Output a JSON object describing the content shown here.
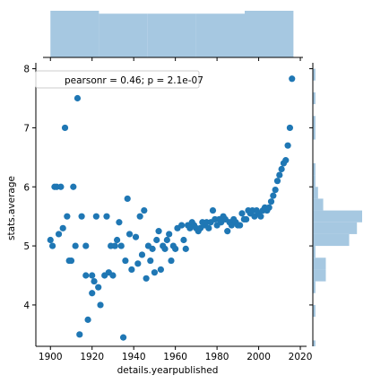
{
  "chart_data": {
    "type": "scatter",
    "subtype": "jointplot",
    "xlabel": "details.yearpublished",
    "ylabel": "stats.average",
    "xlim": [
      1893,
      2023
    ],
    "ylim": [
      3.3,
      8.1
    ],
    "xticks": [
      1900,
      1920,
      1940,
      1960,
      1980,
      2000,
      2020
    ],
    "xtick_labels": [
      "1900",
      "1920",
      "1940",
      "1960",
      "1980",
      "2000",
      "2020"
    ],
    "yticks": [
      4,
      5,
      6,
      7,
      8
    ],
    "ytick_labels": [
      "4",
      "5",
      "6",
      "7",
      "8"
    ],
    "legend_text": "pearsonr = 0.46; p = 2.1e-07",
    "legend_position": "upper left",
    "grid": false,
    "colors": {
      "points": "#1f77b4",
      "histogram": "#a6c8e1",
      "axis": "#000000"
    },
    "points": [
      [
        1900,
        5.1
      ],
      [
        1901,
        5.0
      ],
      [
        1902,
        6.0
      ],
      [
        1903,
        6.0
      ],
      [
        1904,
        5.2
      ],
      [
        1905,
        6.0
      ],
      [
        1906,
        5.3
      ],
      [
        1907,
        7.0
      ],
      [
        1908,
        5.5
      ],
      [
        1909,
        4.75
      ],
      [
        1910,
        4.75
      ],
      [
        1911,
        6.0
      ],
      [
        1912,
        5.0
      ],
      [
        1913,
        7.5
      ],
      [
        1914,
        3.5
      ],
      [
        1915,
        5.5
      ],
      [
        1917,
        4.5
      ],
      [
        1917,
        5.0
      ],
      [
        1918,
        3.75
      ],
      [
        1920,
        4.5
      ],
      [
        1920,
        4.2
      ],
      [
        1921,
        4.4
      ],
      [
        1922,
        5.5
      ],
      [
        1923,
        4.3
      ],
      [
        1924,
        4.0
      ],
      [
        1926,
        4.5
      ],
      [
        1927,
        5.5
      ],
      [
        1928,
        4.55
      ],
      [
        1929,
        5.0
      ],
      [
        1930,
        4.5
      ],
      [
        1931,
        5.0
      ],
      [
        1932,
        5.1
      ],
      [
        1933,
        5.4
      ],
      [
        1934,
        5.0
      ],
      [
        1935,
        3.45
      ],
      [
        1936,
        4.75
      ],
      [
        1937,
        5.8
      ],
      [
        1938,
        5.2
      ],
      [
        1939,
        4.6
      ],
      [
        1941,
        5.15
      ],
      [
        1942,
        4.7
      ],
      [
        1943,
        5.5
      ],
      [
        1944,
        4.85
      ],
      [
        1945,
        5.6
      ],
      [
        1946,
        4.45
      ],
      [
        1947,
        5.0
      ],
      [
        1948,
        4.75
      ],
      [
        1949,
        4.95
      ],
      [
        1950,
        4.55
      ],
      [
        1951,
        5.1
      ],
      [
        1952,
        5.25
      ],
      [
        1953,
        4.6
      ],
      [
        1954,
        5.0
      ],
      [
        1955,
        4.95
      ],
      [
        1956,
        5.1
      ],
      [
        1957,
        5.2
      ],
      [
        1958,
        4.75
      ],
      [
        1959,
        5.0
      ],
      [
        1960,
        4.95
      ],
      [
        1961,
        5.3
      ],
      [
        1963,
        5.35
      ],
      [
        1964,
        5.1
      ],
      [
        1965,
        4.95
      ],
      [
        1966,
        5.35
      ],
      [
        1967,
        5.3
      ],
      [
        1968,
        5.4
      ],
      [
        1969,
        5.35
      ],
      [
        1970,
        5.3
      ],
      [
        1971,
        5.25
      ],
      [
        1972,
        5.3
      ],
      [
        1973,
        5.4
      ],
      [
        1974,
        5.35
      ],
      [
        1975,
        5.4
      ],
      [
        1976,
        5.3
      ],
      [
        1977,
        5.4
      ],
      [
        1978,
        5.6
      ],
      [
        1979,
        5.45
      ],
      [
        1980,
        5.35
      ],
      [
        1981,
        5.45
      ],
      [
        1982,
        5.4
      ],
      [
        1983,
        5.5
      ],
      [
        1984,
        5.45
      ],
      [
        1985,
        5.25
      ],
      [
        1986,
        5.4
      ],
      [
        1987,
        5.35
      ],
      [
        1988,
        5.45
      ],
      [
        1989,
        5.4
      ],
      [
        1990,
        5.35
      ],
      [
        1991,
        5.35
      ],
      [
        1992,
        5.55
      ],
      [
        1993,
        5.45
      ],
      [
        1994,
        5.45
      ],
      [
        1995,
        5.6
      ],
      [
        1996,
        5.55
      ],
      [
        1997,
        5.6
      ],
      [
        1998,
        5.5
      ],
      [
        1999,
        5.6
      ],
      [
        2000,
        5.55
      ],
      [
        2001,
        5.5
      ],
      [
        2002,
        5.6
      ],
      [
        2003,
        5.65
      ],
      [
        2004,
        5.6
      ],
      [
        2005,
        5.65
      ],
      [
        2006,
        5.75
      ],
      [
        2007,
        5.85
      ],
      [
        2008,
        5.95
      ],
      [
        2009,
        6.1
      ],
      [
        2010,
        6.2
      ],
      [
        2011,
        6.3
      ],
      [
        2012,
        6.4
      ],
      [
        2013,
        6.45
      ],
      [
        2014,
        6.7
      ],
      [
        2015,
        7.0
      ],
      [
        2016,
        7.83
      ]
    ],
    "x_histogram": {
      "bins": [
        1900,
        1923.3,
        1946.7,
        1970,
        1993.3,
        2016.7
      ],
      "counts": [
        16,
        15,
        15,
        15,
        16
      ]
    },
    "y_histogram": {
      "bins": [
        3.2,
        3.4,
        3.6,
        3.8,
        4.0,
        4.2,
        4.4,
        4.6,
        4.8,
        5.0,
        5.2,
        5.4,
        5.6,
        5.8,
        6.0,
        6.2,
        6.4,
        6.6,
        6.8,
        7.0,
        7.2,
        7.4,
        7.6,
        7.8,
        8.0
      ],
      "counts": [
        1,
        0,
        0,
        1,
        0,
        1,
        5,
        5,
        1,
        14,
        17,
        19,
        4,
        2,
        1,
        1,
        0,
        0,
        1,
        1,
        0,
        1,
        0,
        1
      ]
    }
  }
}
